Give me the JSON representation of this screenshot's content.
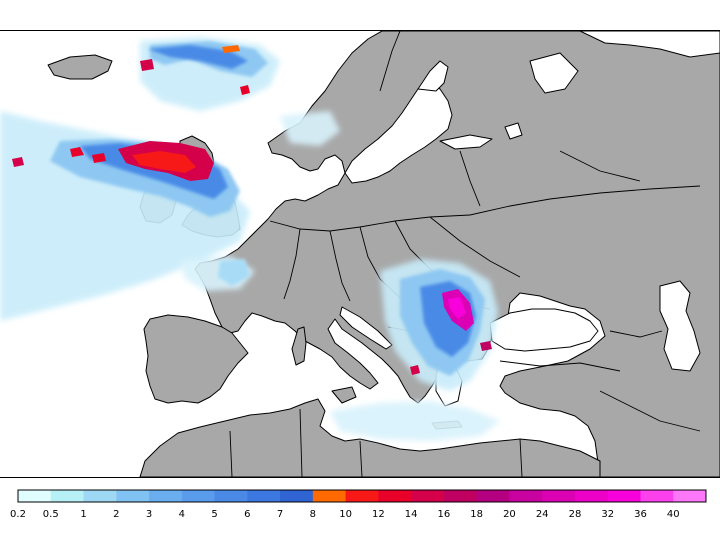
{
  "map": {
    "land_color": "#a8a8a8",
    "sea_color": "#ffffff",
    "border_color": "#000000"
  },
  "legend": {
    "labels": [
      "0.2",
      "0.5",
      "1",
      "2",
      "3",
      "4",
      "5",
      "6",
      "7",
      "8",
      "10",
      "12",
      "14",
      "16",
      "18",
      "20",
      "24",
      "28",
      "32",
      "36",
      "40"
    ],
    "colors": [
      "#e0fefe",
      "#b8f0f8",
      "#9ed8f5",
      "#80c2f2",
      "#6aaef0",
      "#5a9cec",
      "#4a8ae6",
      "#3c78e0",
      "#2f64d2",
      "#ff6a00",
      "#f71818",
      "#e8002a",
      "#d4004a",
      "#c00060",
      "#b40080",
      "#c800a0",
      "#dc00b4",
      "#ec00c8",
      "#f800dc",
      "#fb40ee",
      "#fc78f8"
    ]
  }
}
